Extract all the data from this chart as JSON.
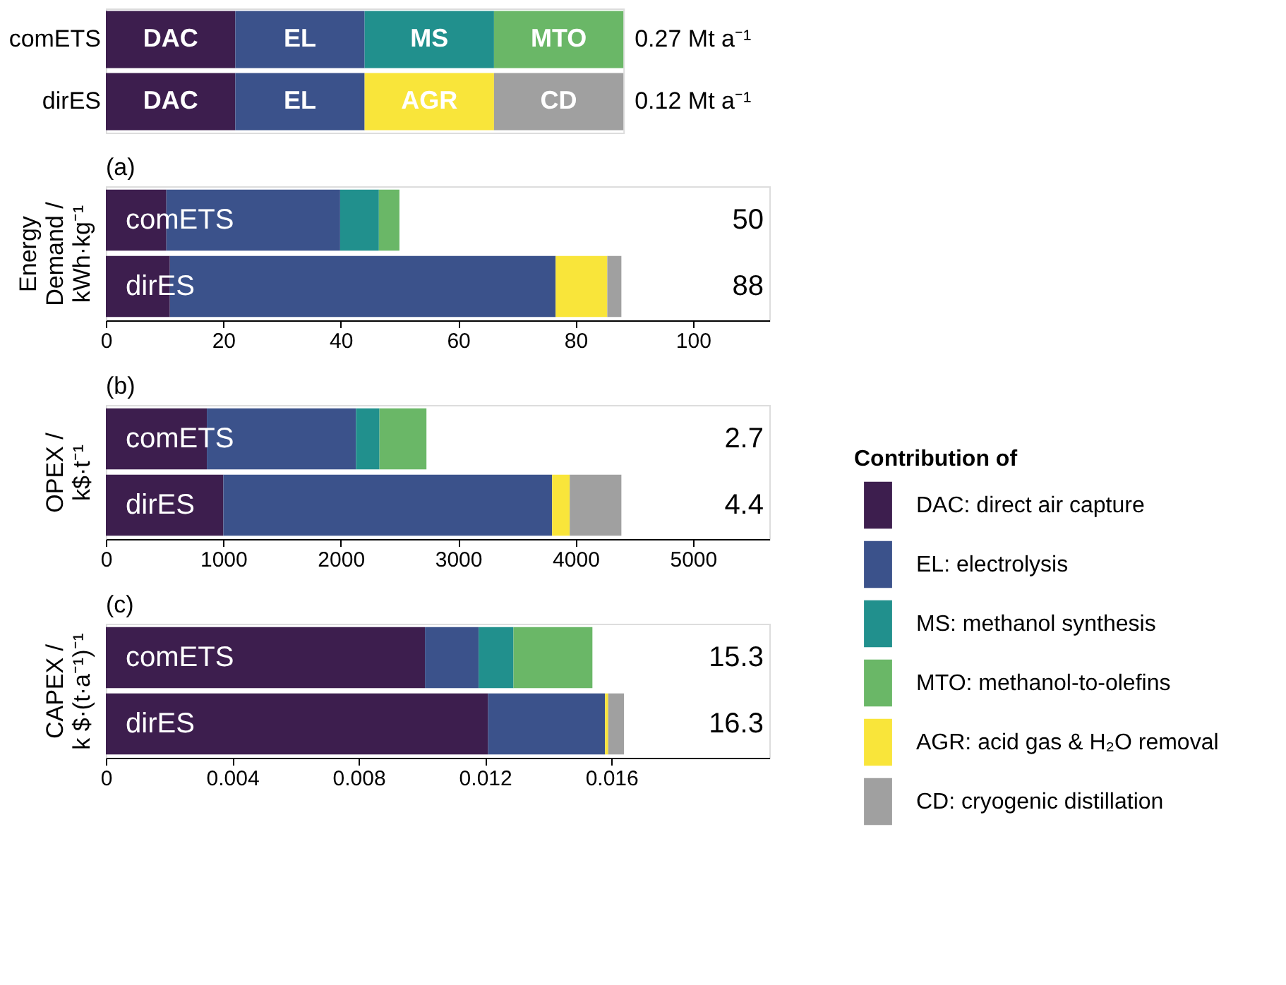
{
  "chart_data": [
    {
      "type": "other",
      "categories": [
        "comETS",
        "dirES"
      ],
      "annotations": [
        "DAC",
        "EL",
        "MS",
        "MTO",
        "0.27 Mt a⁻¹",
        "DAC",
        "EL",
        "AGR",
        "CD",
        "0.12 Mt a⁻¹"
      ],
      "colors": [
        "#3d1e4e",
        "#3b528b",
        "#21908d",
        "#6ab767",
        "#3d1e4e",
        "#3b528b",
        "#f9e53a",
        "#a0a0a0"
      ]
    },
    {
      "type": "bar",
      "orientation": "horizontal",
      "stacked": true,
      "title": "(a)",
      "ylabel": "Energy\nDemand /\nkWh·kg⁻¹",
      "legend_title": "Contribution of",
      "legend": "right",
      "categories": [
        "comETS",
        "dirES"
      ],
      "xlim": [
        0,
        113
      ],
      "xticks": [
        0,
        20,
        40,
        60,
        80,
        100
      ],
      "annotations": [
        "50",
        "88"
      ],
      "series": [
        {
          "name": "DAC: direct air capture",
          "color": "#3d1e4e",
          "values": [
            10.3,
            10.9
          ]
        },
        {
          "name": "EL: electrolysis",
          "color": "#3b528b",
          "values": [
            29.6,
            65.7
          ]
        },
        {
          "name": "MS: methanol synthesis",
          "color": "#21908d",
          "values": [
            6.6,
            null
          ]
        },
        {
          "name": "MTO: methanol-to-olefins",
          "color": "#6ab767",
          "values": [
            3.5,
            null
          ]
        },
        {
          "name": "AGR: acid gas & H₂O removal",
          "color": "#f9e53a",
          "values": [
            null,
            8.8
          ]
        },
        {
          "name": "CD: cryogenic distillation",
          "color": "#a0a0a0",
          "values": [
            null,
            2.4
          ]
        }
      ]
    },
    {
      "type": "bar",
      "orientation": "horizontal",
      "stacked": true,
      "title": "(b)",
      "ylabel": "OPEX /\nk$·t⁻¹",
      "categories": [
        "comETS",
        "dirES"
      ],
      "xlim": [
        0,
        5650
      ],
      "xticks": [
        0,
        1000,
        2000,
        3000,
        4000,
        5000
      ],
      "annotations": [
        "2.7",
        "4.4"
      ],
      "series": [
        {
          "name": "DAC: direct air capture",
          "color": "#3d1e4e",
          "values": [
            860,
            1000
          ]
        },
        {
          "name": "EL: electrolysis",
          "color": "#3b528b",
          "values": [
            1270,
            2800
          ]
        },
        {
          "name": "MS: methanol synthesis",
          "color": "#21908d",
          "values": [
            200,
            null
          ]
        },
        {
          "name": "MTO: methanol-to-olefins",
          "color": "#6ab767",
          "values": [
            400,
            null
          ]
        },
        {
          "name": "AGR: acid gas & H₂O removal",
          "color": "#f9e53a",
          "values": [
            null,
            150
          ]
        },
        {
          "name": "CD: cryogenic distillation",
          "color": "#a0a0a0",
          "values": [
            null,
            440
          ]
        }
      ]
    },
    {
      "type": "bar",
      "orientation": "horizontal",
      "stacked": true,
      "title": "(c)",
      "ylabel": "CAPEX /\nk $·(t·a⁻¹)⁻¹",
      "categories": [
        "comETS",
        "dirES"
      ],
      "xlim": [
        0,
        0.021
      ],
      "xticks": [
        0,
        0.004,
        0.008,
        0.012,
        0.016
      ],
      "annotations": [
        "15.3",
        "16.3"
      ],
      "series": [
        {
          "name": "DAC: direct air capture",
          "color": "#3d1e4e",
          "values": [
            0.0101,
            0.0121
          ]
        },
        {
          "name": "EL: electrolysis",
          "color": "#3b528b",
          "values": [
            0.0017,
            0.0037
          ]
        },
        {
          "name": "MS: methanol synthesis",
          "color": "#21908d",
          "values": [
            0.0011,
            null
          ]
        },
        {
          "name": "MTO: methanol-to-olefins",
          "color": "#6ab767",
          "values": [
            0.0025,
            null
          ]
        },
        {
          "name": "AGR: acid gas & H₂O removal",
          "color": "#f9e53a",
          "values": [
            null,
            0.0001
          ]
        },
        {
          "name": "CD: cryogenic distillation",
          "color": "#a0a0a0",
          "values": [
            null,
            0.0005
          ]
        }
      ]
    }
  ]
}
